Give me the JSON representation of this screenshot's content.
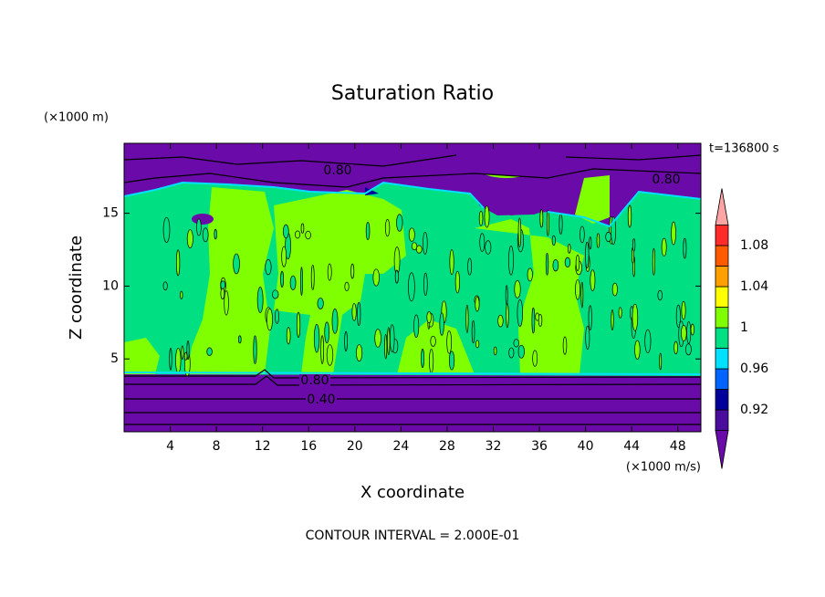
{
  "chart_data": {
    "type": "contour",
    "title": "Saturation Ratio",
    "x_label": "X coordinate",
    "y_label": "Z coordinate",
    "x_unit": "(×1000 m/s)",
    "y_unit": "(×1000 m)",
    "time_label": "t=136800 s",
    "footer": "CONTOUR INTERVAL = 2.000E-01",
    "xlim": [
      0,
      50
    ],
    "xticks": [
      4,
      8,
      12,
      16,
      20,
      24,
      28,
      32,
      36,
      40,
      44,
      48
    ],
    "ylim": [
      0,
      19.8
    ],
    "yticks": [
      5,
      10,
      15
    ],
    "contour_labels": [
      "0.80",
      "0.80",
      "0.80",
      "0.40"
    ],
    "colorbar": {
      "levels": [
        0.9,
        0.92,
        0.94,
        0.96,
        0.98,
        1,
        1.02,
        1.04,
        1.06,
        1.08,
        1.1
      ],
      "colors": [
        "#4a0c9c",
        "#00009a",
        "#0064ff",
        "#00e0ff",
        "#00e082",
        "#80ff00",
        "#ffff00",
        "#ffa000",
        "#ff5a00",
        "#ff2a2a"
      ],
      "under_color": "#6a0aa8",
      "over_color": "#ffa4a4",
      "ticks": [
        0.92,
        0.96,
        1,
        1.04,
        1.08
      ]
    }
  }
}
